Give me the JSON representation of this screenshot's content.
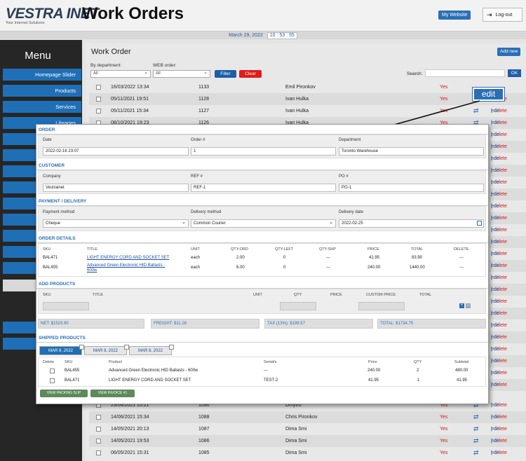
{
  "header": {
    "logo": "VESTRA INET",
    "logo_tagline": "Your Internet Solutions",
    "title": "Work Orders",
    "my_website": "My Website",
    "logout": "Log-out",
    "date": "March 29, 2022",
    "time": "10 : 53 : 55"
  },
  "menu": {
    "title": "Menu",
    "items": [
      "Homepage Slider",
      "Products",
      "Services",
      "Libraries"
    ]
  },
  "main": {
    "title": "Work Order",
    "add_new": "Add new",
    "by_department": "By department:",
    "department_value": "All",
    "web_order": "WEB order:",
    "web_value": "All",
    "filter": "Filter",
    "clear": "Clear",
    "search": "Search:",
    "ok": "OK",
    "edit": "edit",
    "delete": "delete",
    "sep": "|",
    "yes": "Yes",
    "callout": "edit",
    "top_rows": [
      {
        "date": "16/03/2022 13:34",
        "num": "1133",
        "name": "Emil Pironkov",
        "yes": true
      },
      {
        "date": "05/11/2021 19:51",
        "num": "1128",
        "name": "Ivan Hulka",
        "yes": true
      },
      {
        "date": "05/11/2021 15:34",
        "num": "1127",
        "name": "Ivan Hulka",
        "yes": true
      },
      {
        "date": "08/10/2021 19:23",
        "num": "1126",
        "name": "Ivan Hulka",
        "yes": true
      }
    ],
    "bottom_rows": [
      {
        "date": "23/06/2021 15:21",
        "num": "1090",
        "name": "Dmytro",
        "yes": true
      },
      {
        "date": "14/06/2021 15:34",
        "num": "1088",
        "name": "Chris Pironkov",
        "yes": true
      },
      {
        "date": "14/05/2021 20:13",
        "num": "1087",
        "name": "Dima Smi",
        "yes": true
      },
      {
        "date": "14/05/2021 19:53",
        "num": "1086",
        "name": "Dima Smi",
        "yes": true
      },
      {
        "date": "06/05/2021 15:31",
        "num": "1085",
        "name": "Dima Smi",
        "yes": true
      }
    ]
  },
  "form": {
    "order_title": "ORDER",
    "date_label": "Date",
    "date_value": "2022-02-16 23:07",
    "order_num_label": "Order #",
    "order_num_value": "1",
    "department_label": "Department",
    "department_value": "Toronto Warehouse",
    "customer_title": "CUSTOMER",
    "company_label": "Company",
    "company_value": "Vestrainet",
    "ref_label": "REF #",
    "ref_value": "REF-1",
    "po_label": "PO #",
    "po_value": "PO-1",
    "payment_title": "PAYMENT / DELIVERY",
    "payment_method_label": "Payment method",
    "payment_method_value": "Cheque",
    "delivery_method_label": "Delivery method",
    "delivery_method_value": "Common Courier",
    "delivery_date_label": "Delivery date",
    "delivery_date_value": "2022-02-25",
    "details_title": "ORDER DETAILS",
    "details_headers": [
      "SKU",
      "TITLE",
      "UNIT",
      "QTY-ORD",
      "QTY-LEFT",
      "QTY-SHP",
      "PRICE",
      "TOTAL",
      "DELETE"
    ],
    "details_rows": [
      {
        "sku": "BAL471",
        "title": "LIGHT ENERGY CORD AND SOCKET SET",
        "title2": "",
        "unit": "each",
        "qty_ord": "2.00",
        "qty_left": "0",
        "qty_shp": "---",
        "price": "41.95",
        "total": "83.90",
        "del": "---"
      },
      {
        "sku": "BAL455",
        "title": "Advanced Green Electronic HID Ballasts -",
        "title2": "600w",
        "unit": "each",
        "qty_ord": "6.00",
        "qty_left": "0",
        "qty_shp": "---",
        "price": "240.00",
        "total": "1440.00",
        "del": "---"
      }
    ],
    "add_title": "ADD PRODUCTS",
    "add_headers": [
      "SKU",
      "TITLE",
      "UNIT",
      "QTY",
      "PRICE",
      "CUSTOM PRICE",
      "TOTAL"
    ],
    "net": "NET: $1523.90",
    "freight": "FREIGHT: $11.28",
    "tax": "TAX (13%): $199.57",
    "total": "TOTAL: $1734.75",
    "shipped_title": "SHIPPED PRODUCTS",
    "ship_tabs": [
      "MAR 8, 2022",
      "MAR 8, 2022",
      "MAR 8, 2022"
    ],
    "ship_headers": [
      "Delete",
      "SKU",
      "Product",
      "Serial/s",
      "Price",
      "QTY",
      "Subtotal"
    ],
    "ship_rows": [
      {
        "sku": "BAL455",
        "product": "Advanced Green Electronic HID Ballasts - 600w",
        "serial": "---",
        "price": "240.00",
        "qty": "2",
        "subtotal": "480.00"
      },
      {
        "sku": "BAL471",
        "product": "LIGHT ENERGY CORD AND SOCKET SET",
        "serial": "TEST-2",
        "price": "41.95",
        "qty": "1",
        "subtotal": "41.95"
      }
    ],
    "view_packing": "VIEW PACKING SLIP",
    "view_invoice": "VIEW INVOICE #1"
  }
}
